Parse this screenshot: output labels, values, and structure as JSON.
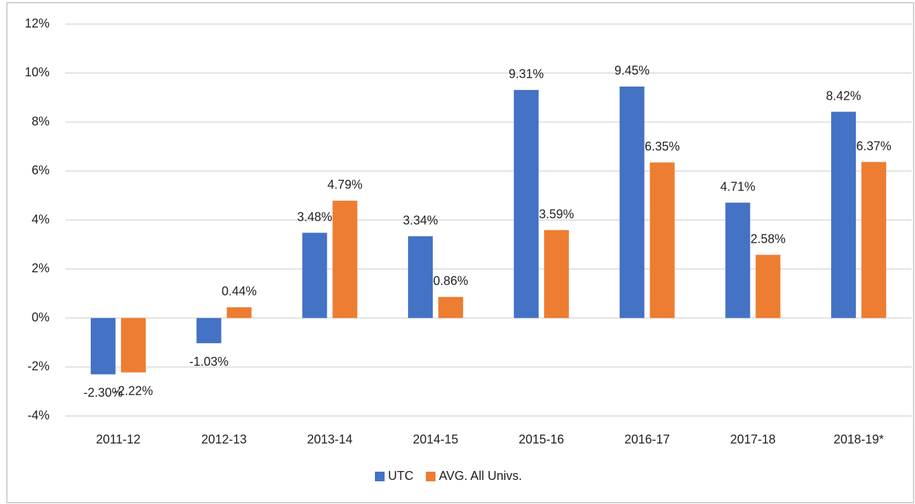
{
  "chart_data": {
    "type": "bar",
    "categories": [
      "2011-12",
      "2012-13",
      "2013-14",
      "2014-15",
      "2015-16",
      "2016-17",
      "2017-18",
      "2018-19*"
    ],
    "series": [
      {
        "name": "UTC",
        "color": "#4472c4",
        "values": [
          -2.3,
          -1.03,
          3.48,
          3.34,
          9.31,
          9.45,
          4.71,
          8.42
        ],
        "value_labels": [
          "-2.30%",
          "-1.03%",
          "3.48%",
          "3.34%",
          "9.31%",
          "9.45%",
          "4.71%",
          "8.42%"
        ]
      },
      {
        "name": "AVG. All Univs.",
        "color": "#ed7d31",
        "values": [
          -2.22,
          0.44,
          4.79,
          0.86,
          3.59,
          6.35,
          2.58,
          6.37
        ],
        "value_labels": [
          "-2.22%",
          "0.44%",
          "4.79%",
          "0.86%",
          "3.59%",
          "6.35%",
          "2.58%",
          "6.37%"
        ]
      }
    ],
    "ylim": [
      -4,
      12
    ],
    "yticks": [
      {
        "value": -4,
        "label": "-4%"
      },
      {
        "value": -2,
        "label": "-2%"
      },
      {
        "value": 0,
        "label": "0%"
      },
      {
        "value": 2,
        "label": "2%"
      },
      {
        "value": 4,
        "label": "4%"
      },
      {
        "value": 6,
        "label": "6%"
      },
      {
        "value": 8,
        "label": "8%"
      },
      {
        "value": 10,
        "label": "10%"
      },
      {
        "value": 12,
        "label": "12%"
      }
    ],
    "grid": true,
    "legend": "bottom"
  }
}
